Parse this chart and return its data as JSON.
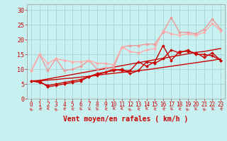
{
  "title": "",
  "xlabel": "Vent moyen/en rafales ( km/h )",
  "bg_color": "#c8f0f0",
  "grid_color": "#a8d8d8",
  "xlim": [
    -0.5,
    23.5
  ],
  "ylim": [
    0,
    32
  ],
  "yticks": [
    0,
    5,
    10,
    15,
    20,
    25,
    30
  ],
  "xticks": [
    0,
    1,
    2,
    3,
    4,
    5,
    6,
    7,
    8,
    9,
    10,
    11,
    12,
    13,
    14,
    15,
    16,
    17,
    18,
    19,
    20,
    21,
    22,
    23
  ],
  "lines": [
    {
      "x": [
        0,
        1,
        2,
        3,
        4,
        5,
        6,
        7,
        8,
        9,
        10,
        11,
        12,
        13,
        14,
        15,
        16,
        17,
        18,
        19,
        20,
        21,
        22,
        23
      ],
      "y": [
        6.0,
        6.0,
        6.3,
        6.5,
        6.8,
        7.0,
        7.3,
        7.6,
        8.0,
        8.3,
        8.6,
        8.9,
        9.2,
        9.5,
        9.8,
        10.2,
        10.6,
        11.0,
        11.4,
        11.8,
        12.2,
        12.6,
        13.0,
        13.5
      ],
      "color": "#cc0000",
      "lw": 1.0,
      "marker": null,
      "alpha": 1.0
    },
    {
      "x": [
        0,
        1,
        2,
        3,
        4,
        5,
        6,
        7,
        8,
        9,
        10,
        11,
        12,
        13,
        14,
        15,
        16,
        17,
        18,
        19,
        20,
        21,
        22,
        23
      ],
      "y": [
        6.0,
        6.2,
        6.7,
        7.2,
        7.7,
        8.2,
        8.7,
        9.2,
        9.7,
        10.2,
        10.7,
        11.2,
        11.7,
        12.2,
        12.7,
        13.2,
        13.7,
        14.2,
        14.7,
        15.2,
        15.7,
        16.0,
        16.5,
        17.0
      ],
      "color": "#cc0000",
      "lw": 1.0,
      "marker": null,
      "alpha": 1.0
    },
    {
      "x": [
        0,
        1,
        2,
        3,
        4,
        5,
        6,
        7,
        8,
        9,
        10,
        11,
        12,
        13,
        14,
        15,
        16,
        17,
        18,
        19,
        20,
        21,
        22,
        23
      ],
      "y": [
        6.0,
        6.0,
        4.0,
        4.5,
        5.0,
        5.5,
        6.0,
        7.5,
        8.5,
        9.0,
        10.0,
        9.5,
        9.5,
        12.5,
        11.0,
        12.5,
        18.0,
        13.0,
        16.0,
        16.0,
        15.5,
        14.0,
        15.5,
        13.0
      ],
      "color": "#cc0000",
      "lw": 1.0,
      "marker": "D",
      "markersize": 2.0,
      "alpha": 1.0
    },
    {
      "x": [
        0,
        1,
        2,
        3,
        4,
        5,
        6,
        7,
        8,
        9,
        10,
        11,
        12,
        13,
        14,
        15,
        16,
        17,
        18,
        19,
        20,
        21,
        22,
        23
      ],
      "y": [
        6.0,
        5.5,
        4.5,
        5.0,
        5.5,
        6.0,
        6.5,
        7.5,
        8.0,
        9.0,
        9.5,
        10.0,
        8.5,
        9.5,
        12.5,
        12.0,
        13.5,
        16.5,
        15.5,
        16.5,
        15.0,
        15.0,
        14.5,
        13.0
      ],
      "color": "#cc0000",
      "lw": 1.0,
      "marker": "D",
      "markersize": 2.0,
      "alpha": 1.0
    },
    {
      "x": [
        0,
        1,
        2,
        3,
        4,
        5,
        6,
        7,
        8,
        9,
        10,
        11,
        12,
        13,
        14,
        15,
        16,
        17,
        18,
        19,
        20,
        21,
        22,
        23
      ],
      "y": [
        9.5,
        15.0,
        9.5,
        13.5,
        9.5,
        10.0,
        11.0,
        13.0,
        10.0,
        10.5,
        10.5,
        17.5,
        18.0,
        18.0,
        18.5,
        18.5,
        22.5,
        27.5,
        22.5,
        22.5,
        22.0,
        23.5,
        27.0,
        23.5
      ],
      "color": "#ee9999",
      "lw": 1.0,
      "marker": "D",
      "markersize": 2.0,
      "alpha": 1.0
    },
    {
      "x": [
        0,
        1,
        2,
        3,
        4,
        5,
        6,
        7,
        8,
        9,
        10,
        11,
        12,
        13,
        14,
        15,
        16,
        17,
        18,
        19,
        20,
        21,
        22,
        23
      ],
      "y": [
        9.5,
        15.0,
        12.0,
        13.5,
        13.0,
        12.5,
        12.5,
        13.0,
        12.0,
        12.0,
        11.5,
        17.5,
        16.0,
        15.5,
        16.5,
        17.0,
        23.0,
        22.0,
        21.5,
        22.0,
        21.5,
        22.5,
        25.5,
        23.0
      ],
      "color": "#ffaaaa",
      "lw": 1.0,
      "marker": "D",
      "markersize": 2.0,
      "alpha": 1.0
    }
  ]
}
